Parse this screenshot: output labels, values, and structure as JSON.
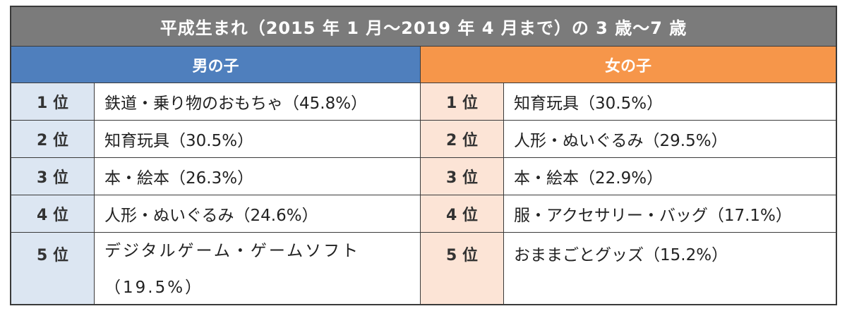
{
  "table": {
    "title": "平成生まれ（2015 年 1 月〜2019 年 4 月まで）の 3 歳〜7 歳",
    "boys_header": "男の子",
    "girls_header": "女の子",
    "rows": [
      {
        "rank": "1 位",
        "boy": "鉄道・乗り物のおもちゃ（45.8%）",
        "girl": "知育玩具（30.5%）"
      },
      {
        "rank": "2 位",
        "boy": "知育玩具（30.5%）",
        "girl": "人形・ぬいぐるみ（29.5%）"
      },
      {
        "rank": "3 位",
        "boy": "本・絵本（26.3%）",
        "girl": "本・絵本（22.9%）"
      },
      {
        "rank": "4 位",
        "boy": "人形・ぬいぐるみ（24.6%）",
        "girl": "服・アクセサリー・バッグ（17.1%）"
      },
      {
        "rank": "5 位",
        "boy": "デジタルゲーム・ゲームソフト（19.5%）",
        "girl": "おままごとグッズ（15.2%）"
      }
    ]
  },
  "colors": {
    "title_bg": "#7b7b7b",
    "boys_header_bg": "#4f7fbd",
    "girls_header_bg": "#f6964a",
    "boys_rank_bg": "#dce6f2",
    "girls_rank_bg": "#fce4d6"
  }
}
